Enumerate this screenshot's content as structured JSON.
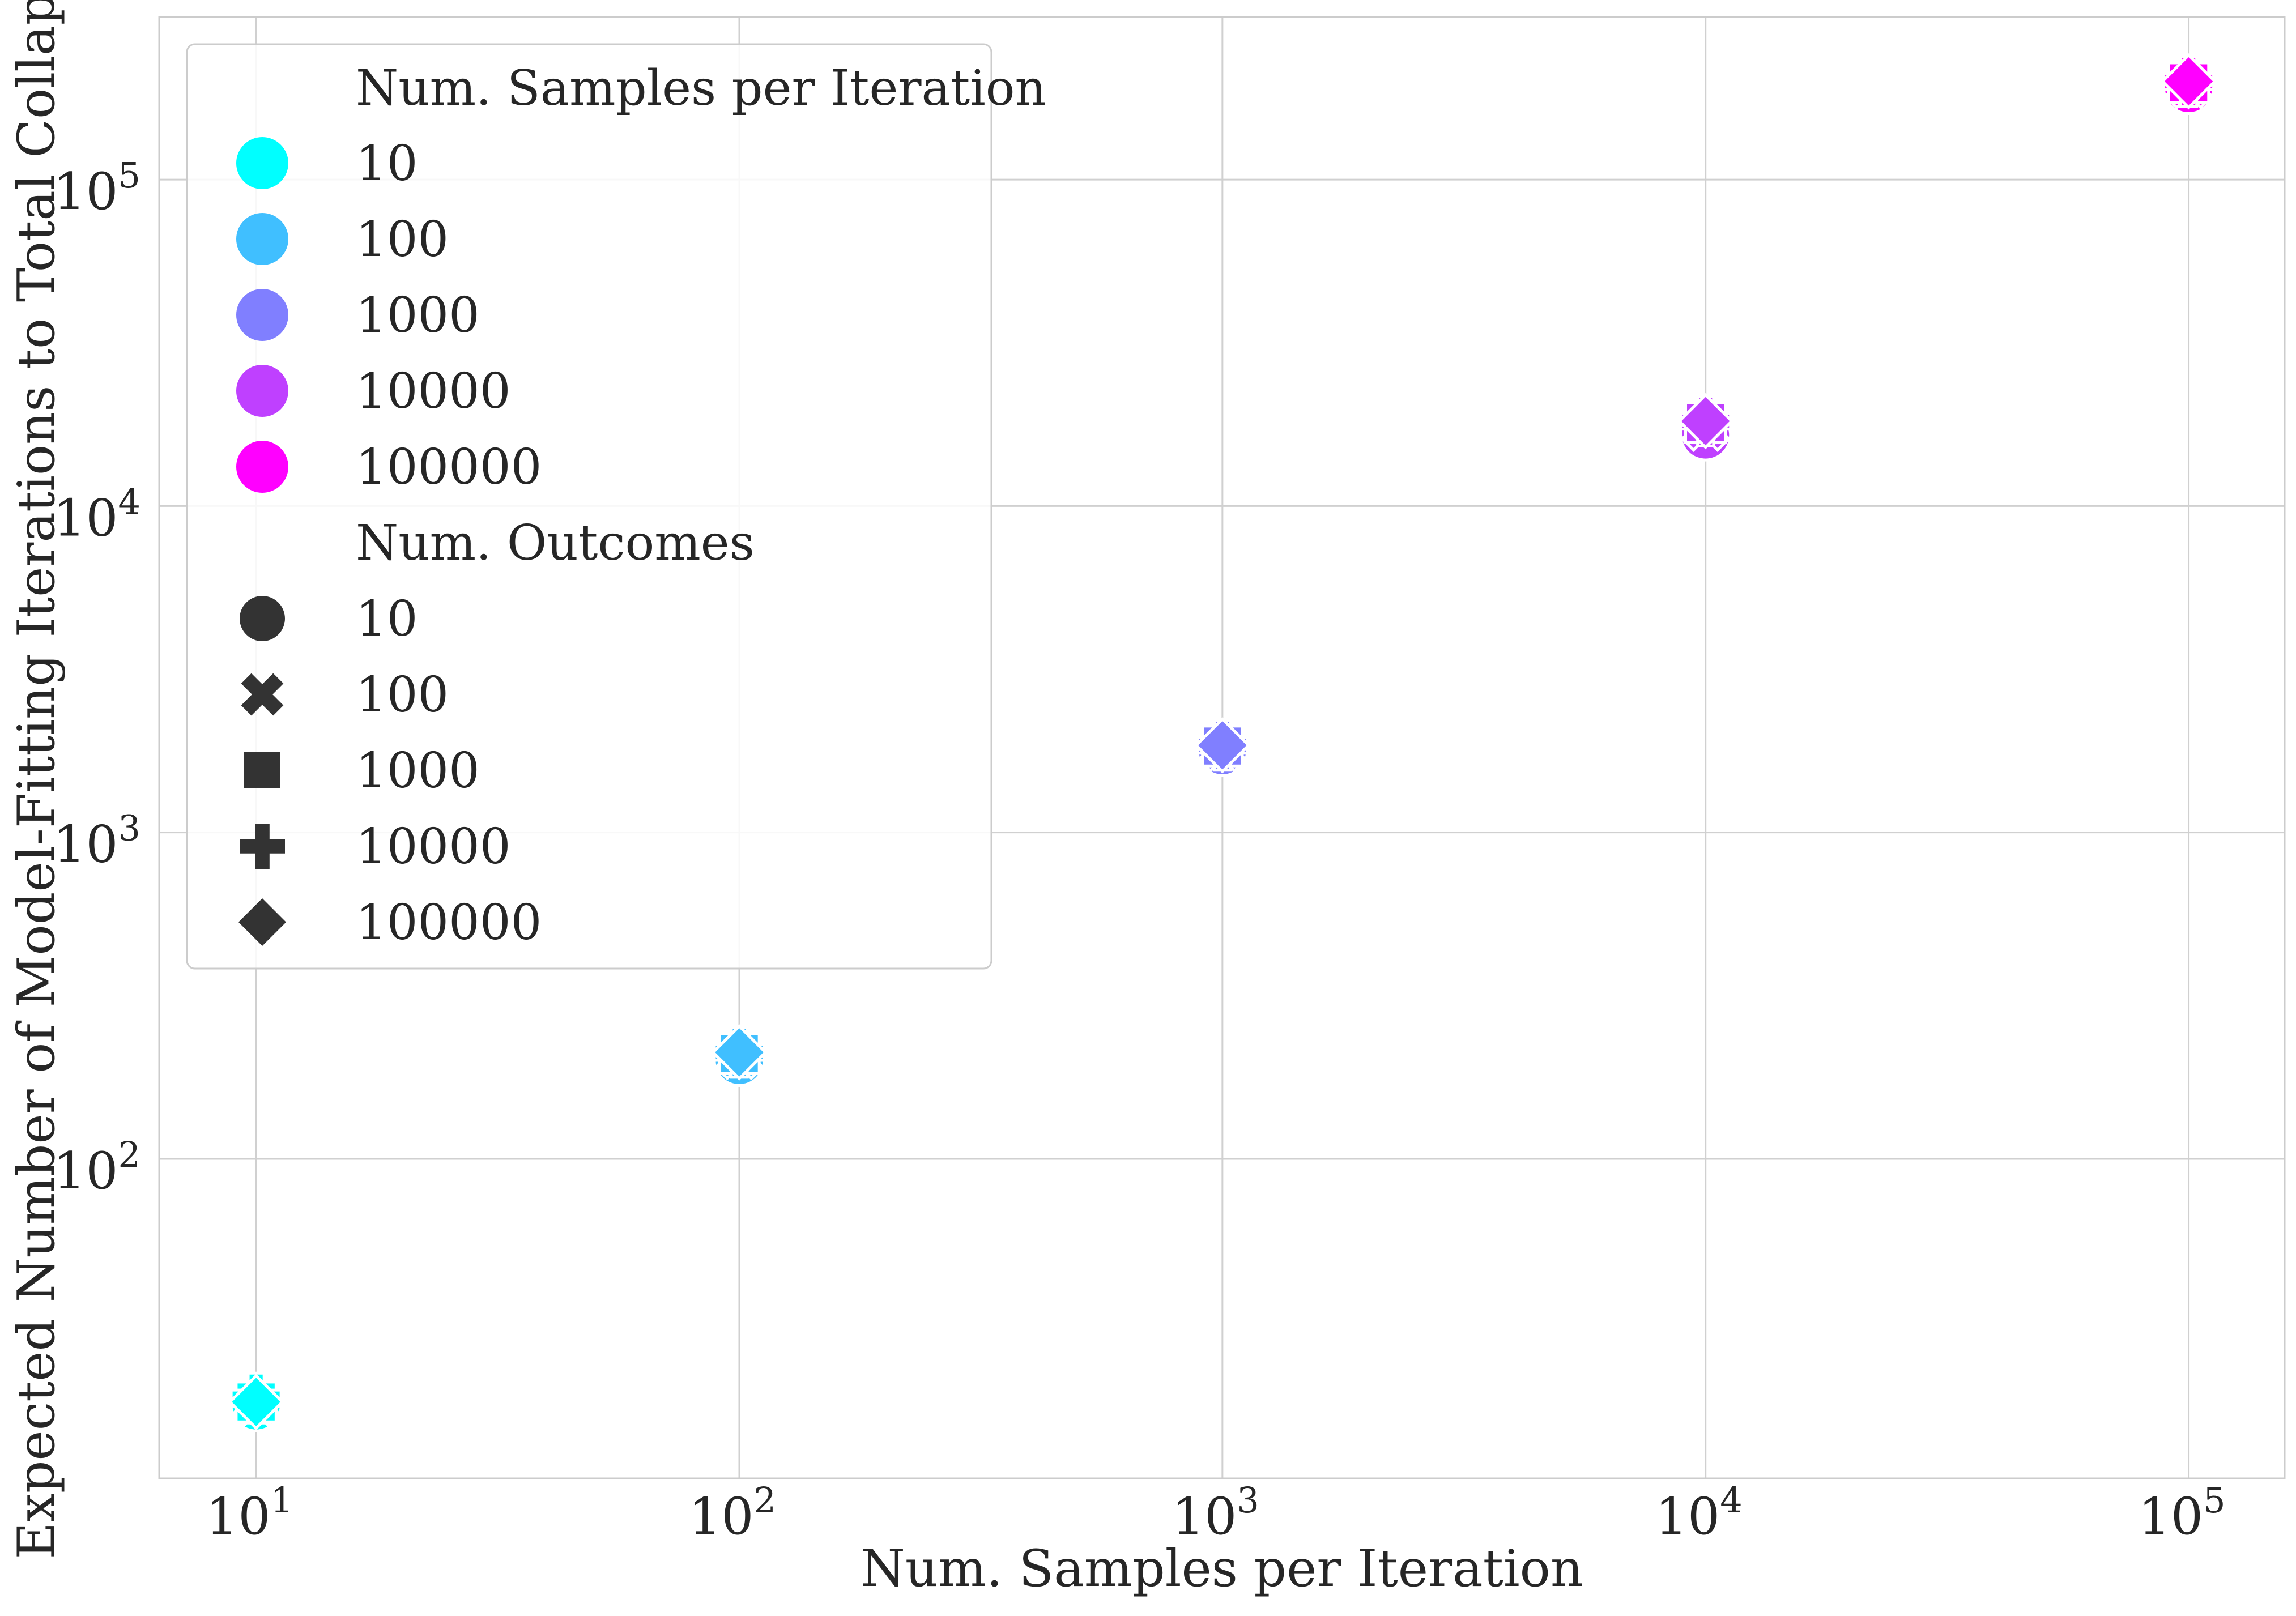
{
  "chart_data": {
    "type": "scatter",
    "title": "",
    "xlabel": "Num. Samples per Iteration",
    "ylabel": "Expected Number of Model-Fitting Iterations to Total Collapse",
    "xscale": "log",
    "yscale": "log",
    "xlim": [
      6.3,
      158000
    ],
    "ylim": [
      10.5,
      315000
    ],
    "grid": true,
    "x_ticks": [
      {
        "base": "10",
        "exp": "1",
        "value": 10
      },
      {
        "base": "10",
        "exp": "2",
        "value": 100
      },
      {
        "base": "10",
        "exp": "3",
        "value": 1000
      },
      {
        "base": "10",
        "exp": "4",
        "value": 10000
      },
      {
        "base": "10",
        "exp": "5",
        "value": 100000
      }
    ],
    "y_ticks": [
      {
        "base": "10",
        "exp": "2",
        "value": 100
      },
      {
        "base": "10",
        "exp": "3",
        "value": 1000
      },
      {
        "base": "10",
        "exp": "4",
        "value": 10000
      },
      {
        "base": "10",
        "exp": "5",
        "value": 100000
      }
    ],
    "legend": {
      "placement": "top-left",
      "hue_title": "Num. Samples per Iteration",
      "hue_entries": [
        {
          "label": "10",
          "color": "#00ffff"
        },
        {
          "label": "100",
          "color": "#40bfff"
        },
        {
          "label": "1000",
          "color": "#807fff"
        },
        {
          "label": "10000",
          "color": "#bf40ff"
        },
        {
          "label": "100000",
          "color": "#ff00ff"
        }
      ],
      "style_title": "Num. Outcomes",
      "style_entries": [
        {
          "label": "10",
          "marker": "circle"
        },
        {
          "label": "100",
          "marker": "x"
        },
        {
          "label": "1000",
          "marker": "square"
        },
        {
          "label": "10000",
          "marker": "plus"
        },
        {
          "label": "100000",
          "marker": "diamond"
        }
      ]
    },
    "points": [
      {
        "x": 10,
        "y": 17.5,
        "samples": "10",
        "outcomes": "10"
      },
      {
        "x": 10,
        "y": 18,
        "samples": "10",
        "outcomes": "100"
      },
      {
        "x": 10,
        "y": 18,
        "samples": "10",
        "outcomes": "1000"
      },
      {
        "x": 10,
        "y": 18.5,
        "samples": "10",
        "outcomes": "10000"
      },
      {
        "x": 10,
        "y": 18,
        "samples": "10",
        "outcomes": "100000"
      },
      {
        "x": 100,
        "y": 200,
        "samples": "100",
        "outcomes": "10"
      },
      {
        "x": 100,
        "y": 208,
        "samples": "100",
        "outcomes": "100"
      },
      {
        "x": 100,
        "y": 210,
        "samples": "100",
        "outcomes": "1000"
      },
      {
        "x": 100,
        "y": 212,
        "samples": "100",
        "outcomes": "10000"
      },
      {
        "x": 100,
        "y": 212,
        "samples": "100",
        "outcomes": "100000"
      },
      {
        "x": 1000,
        "y": 1780,
        "samples": "1000",
        "outcomes": "10"
      },
      {
        "x": 1000,
        "y": 1820,
        "samples": "1000",
        "outcomes": "100"
      },
      {
        "x": 1000,
        "y": 1840,
        "samples": "1000",
        "outcomes": "1000"
      },
      {
        "x": 1000,
        "y": 1850,
        "samples": "1000",
        "outcomes": "10000"
      },
      {
        "x": 1000,
        "y": 1850,
        "samples": "1000",
        "outcomes": "100000"
      },
      {
        "x": 10000,
        "y": 16500,
        "samples": "10000",
        "outcomes": "10"
      },
      {
        "x": 10000,
        "y": 17500,
        "samples": "10000",
        "outcomes": "100"
      },
      {
        "x": 10000,
        "y": 18000,
        "samples": "10000",
        "outcomes": "1000"
      },
      {
        "x": 10000,
        "y": 18200,
        "samples": "10000",
        "outcomes": "10000"
      },
      {
        "x": 10000,
        "y": 18200,
        "samples": "10000",
        "outcomes": "100000"
      },
      {
        "x": 100000,
        "y": 190000,
        "samples": "100000",
        "outcomes": "10"
      },
      {
        "x": 100000,
        "y": 196000,
        "samples": "100000",
        "outcomes": "100"
      },
      {
        "x": 100000,
        "y": 198000,
        "samples": "100000",
        "outcomes": "1000"
      },
      {
        "x": 100000,
        "y": 200000,
        "samples": "100000",
        "outcomes": "10000"
      },
      {
        "x": 100000,
        "y": 200000,
        "samples": "100000",
        "outcomes": "100000"
      }
    ]
  }
}
